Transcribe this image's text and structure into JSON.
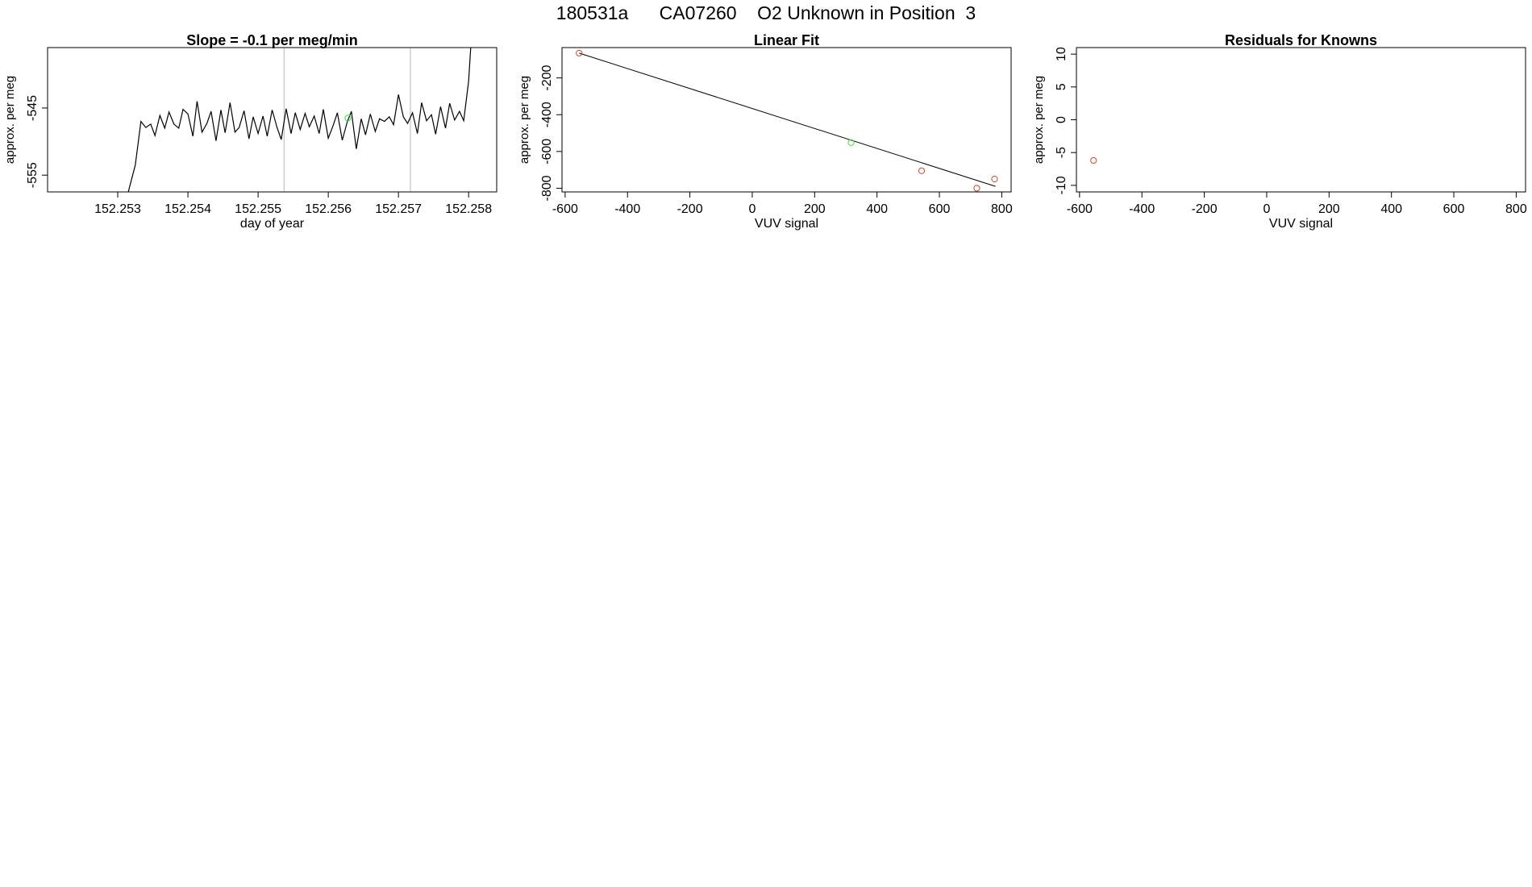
{
  "page_title": "180531a      CA07260    O2 Unknown in Position  3",
  "chart_data": [
    {
      "type": "line",
      "title": "Slope =  -0.1  per meg/min",
      "xlabel": "day of year",
      "ylabel": "approx. per meg",
      "xlim": [
        152.252,
        152.2584
      ],
      "ylim": [
        -557.5,
        -536.0
      ],
      "xticks": [
        "152.253",
        "152.254",
        "152.255",
        "152.256",
        "152.257",
        "152.258"
      ],
      "yticks": [
        "-545",
        "-555"
      ],
      "grid": false,
      "vlines": [
        152.25537,
        152.25717
      ],
      "series": [
        {
          "color": "#000000",
          "x": [
            152.25315,
            152.25325,
            152.25333,
            152.2534,
            152.25347,
            152.25353,
            152.2536,
            152.25367,
            152.25373,
            152.2538,
            152.25387,
            152.25393,
            152.254,
            152.25407,
            152.25413,
            152.2542,
            152.25427,
            152.25433,
            152.2544,
            152.25447,
            152.25453,
            152.2546,
            152.25467,
            152.25473,
            152.2548,
            152.25487,
            152.25493,
            152.255,
            152.25507,
            152.25513,
            152.2552,
            152.25527,
            152.25533,
            152.2554,
            152.25547,
            152.25553,
            152.2556,
            152.25567,
            152.25573,
            152.2558,
            152.25587,
            152.25593,
            152.256,
            152.25607,
            152.25613,
            152.2562,
            152.25627,
            152.25633,
            152.2564,
            152.25647,
            152.25653,
            152.2566,
            152.25667,
            152.25673,
            152.2568,
            152.25687,
            152.25693,
            152.257,
            152.25707,
            152.25713,
            152.2572,
            152.25727,
            152.25733,
            152.2574,
            152.25747,
            152.25753,
            152.2576,
            152.25767,
            152.25773,
            152.2578,
            152.25787,
            152.25793,
            152.258,
            152.25803
          ],
          "y": [
            -557.5,
            -553.5,
            -547.0,
            -547.9,
            -547.4,
            -549.1,
            -546.1,
            -548.0,
            -545.6,
            -547.4,
            -548.0,
            -545.2,
            -545.9,
            -549.2,
            -544.0,
            -548.6,
            -547.3,
            -545.5,
            -549.9,
            -545.3,
            -548.7,
            -544.2,
            -548.6,
            -547.9,
            -545.4,
            -549.6,
            -546.3,
            -548.8,
            -546.2,
            -549.2,
            -545.3,
            -547.9,
            -549.7,
            -545.1,
            -548.8,
            -545.7,
            -548.2,
            -545.8,
            -547.8,
            -546.2,
            -548.8,
            -545.2,
            -549.5,
            -547.6,
            -545.7,
            -549.8,
            -547.1,
            -545.5,
            -551.1,
            -546.6,
            -549.0,
            -545.9,
            -548.5,
            -546.6,
            -547.0,
            -546.3,
            -547.5,
            -543.0,
            -546.3,
            -547.3,
            -545.7,
            -548.8,
            -544.2,
            -546.9,
            -546.0,
            -548.9,
            -544.8,
            -548.0,
            -544.3,
            -546.8,
            -545.5,
            -546.9,
            -541.0,
            -536.0
          ]
        }
      ],
      "highlight_points": [
        {
          "x": 152.25628,
          "y": -546.5,
          "color": "#33dd33"
        }
      ]
    },
    {
      "type": "scatter",
      "title": "Linear Fit",
      "xlabel": "VUV signal",
      "ylabel": "approx. per meg",
      "xlim": [
        -610,
        830
      ],
      "ylim": [
        -820,
        -35
      ],
      "xticks": [
        "-600",
        "-400",
        "-200",
        "0",
        "200",
        "400",
        "600",
        "800"
      ],
      "yticks": [
        "-200",
        "-400",
        "-600",
        "-800"
      ],
      "grid": false,
      "fit_line": {
        "x": [
          -555,
          780
        ],
        "y": [
          -65,
          -790
        ],
        "color": "#000000"
      },
      "series": [
        {
          "color": "#cc4433",
          "x": [
            -555,
            543,
            720,
            777
          ],
          "y": [
            -65,
            -705,
            -800,
            -750
          ]
        },
        {
          "color": "#33dd33",
          "x": [
            317
          ],
          "y": [
            -552
          ]
        }
      ]
    },
    {
      "type": "scatter",
      "title": "Residuals for Knowns",
      "xlabel": "VUV signal",
      "ylabel": "approx. per meg",
      "xlim": [
        -610,
        830
      ],
      "ylim": [
        -11,
        11
      ],
      "xticks": [
        "-600",
        "-400",
        "-200",
        "0",
        "200",
        "400",
        "600",
        "800"
      ],
      "yticks": [
        "10",
        "5",
        "0",
        "-5",
        "-10"
      ],
      "grid": false,
      "series": [
        {
          "color": "#cc4433",
          "x": [
            -555
          ],
          "y": [
            -6.2
          ]
        }
      ]
    }
  ]
}
